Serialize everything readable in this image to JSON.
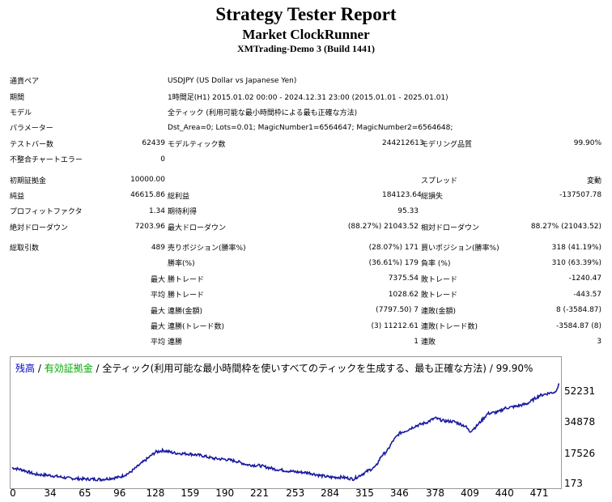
{
  "header": {
    "title": "Strategy Tester Report",
    "ea_name": "Market ClockRunner",
    "server": "XMTrading-Demo 3 (Build 1441)"
  },
  "info": [
    {
      "label": "通貨ペア",
      "value": "USDJPY (US Dollar vs Japanese Yen)"
    },
    {
      "label": "期間",
      "value": "1時間足(H1) 2015.01.02 00:00 - 2024.12.31 23:00 (2015.01.01 - 2025.01.01)"
    },
    {
      "label": "モデル",
      "value": "全ティック (利用可能な最小時間枠による最も正確な方法)"
    },
    {
      "label": "パラメーター",
      "value": "Dst_Area=0; Lots=0.01; MagicNumber1=6564647; MagicNumber2=6564648;"
    }
  ],
  "stats": {
    "bars_label": "テストバー数",
    "bars": "62439",
    "ticks_label": "モデルティック数",
    "ticks": "244212613",
    "quality_label": "モデリング品質",
    "quality": "99.90%",
    "mismatch_label": "不整合チャートエラー",
    "mismatch": "0",
    "deposit_label": "初期証拠金",
    "deposit": "10000.00",
    "spread_label": "スプレッド",
    "spread": "変動",
    "net_label": "純益",
    "net": "46615.86",
    "gross_profit_label": "総利益",
    "gross_profit": "184123.64",
    "gross_loss_label": "総損失",
    "gross_loss": "-137507.78",
    "pf_label": "プロフィットファクタ",
    "pf": "1.34",
    "expected_label": "期待利得",
    "expected": "95.33",
    "abs_dd_label": "絶対ドローダウン",
    "abs_dd": "7203.96",
    "max_dd_label": "最大ドローダウン",
    "max_dd": "21043.52 (88.27%)",
    "rel_dd_label": "相対ドローダウン",
    "rel_dd": "88.27% (21043.52)",
    "total_label": "総取引数",
    "total": "489",
    "short_label": "売りポジション(勝率%)",
    "short": "171 (28.07%)",
    "long_label": "買いポジション(勝率%)",
    "long": "318 (41.19%)",
    "win_pct_label": "勝率(%)",
    "win_pct": "179 (36.61%)",
    "loss_pct_label": "負率 (%)",
    "loss_pct": "310 (63.39%)",
    "q_max": "最大",
    "q_avg": "平均",
    "max_win_label": "勝トレード",
    "max_win": "7375.54",
    "max_loss_label": "敗トレード",
    "max_loss": "-1240.47",
    "avg_win_label": "勝トレード",
    "avg_win": "1028.62",
    "avg_loss_label": "敗トレード",
    "avg_loss": "-443.57",
    "cons_wins_money_label": "連勝(金額)",
    "cons_wins_money": "7 (7797.50)",
    "cons_losses_money_label": "連敗(金額)",
    "cons_losses_money": "8 (-3584.87)",
    "cons_profit_label": "連勝(トレード数)",
    "cons_profit": "11212.61 (3)",
    "cons_loss_label": "連敗(トレード数)",
    "cons_loss": "-3584.87 (8)",
    "avg_cons_wins_label": "連勝",
    "avg_cons_wins": "1",
    "avg_cons_losses_label": "連敗",
    "avg_cons_losses": "3"
  },
  "chart_legend": {
    "balance": "残高",
    "sep1": " / ",
    "equity": "有効証拠金",
    "rest": " / 全ティック(利用可能な最小時間枠を使いすべてのティックを生成する、最も正確な方法) / 99.90%"
  },
  "colors": {
    "balance": "#0000cc",
    "equity": "#00aa00",
    "line": "#1a1aa0"
  },
  "chart_data": {
    "type": "line",
    "x_ticks": [
      "0",
      "34",
      "65",
      "96",
      "128",
      "159",
      "190",
      "221",
      "253",
      "284",
      "315",
      "346",
      "378",
      "409",
      "440",
      "471"
    ],
    "y_ticks": [
      "52231",
      "34878",
      "17526",
      "173"
    ],
    "ylim": [
      173,
      58000
    ],
    "xlim": [
      0,
      489
    ],
    "series": [
      {
        "name": "残高",
        "x": [
          0,
          10,
          20,
          34,
          50,
          65,
          80,
          96,
          105,
          115,
          128,
          135,
          145,
          159,
          170,
          180,
          190,
          200,
          210,
          221,
          235,
          253,
          265,
          275,
          284,
          295,
          305,
          315,
          325,
          330,
          335,
          340,
          346,
          352,
          360,
          370,
          378,
          385,
          395,
          405,
          409,
          415,
          425,
          435,
          440,
          450,
          460,
          465,
          471,
          480,
          485,
          489
        ],
        "y": [
          9800,
          8500,
          6200,
          5500,
          4000,
          3500,
          3300,
          4500,
          7000,
          12000,
          18500,
          19500,
          18000,
          17500,
          16500,
          15000,
          14500,
          13500,
          11500,
          11000,
          9000,
          7500,
          7000,
          5500,
          4500,
          4500,
          3500,
          7000,
          10500,
          16500,
          19000,
          24500,
          29000,
          30500,
          33000,
          35000,
          37500,
          36000,
          35500,
          33000,
          30000,
          33000,
          40000,
          41000,
          43000,
          44000,
          45500,
          47500,
          50000,
          51500,
          52000,
          56500
        ]
      }
    ]
  }
}
